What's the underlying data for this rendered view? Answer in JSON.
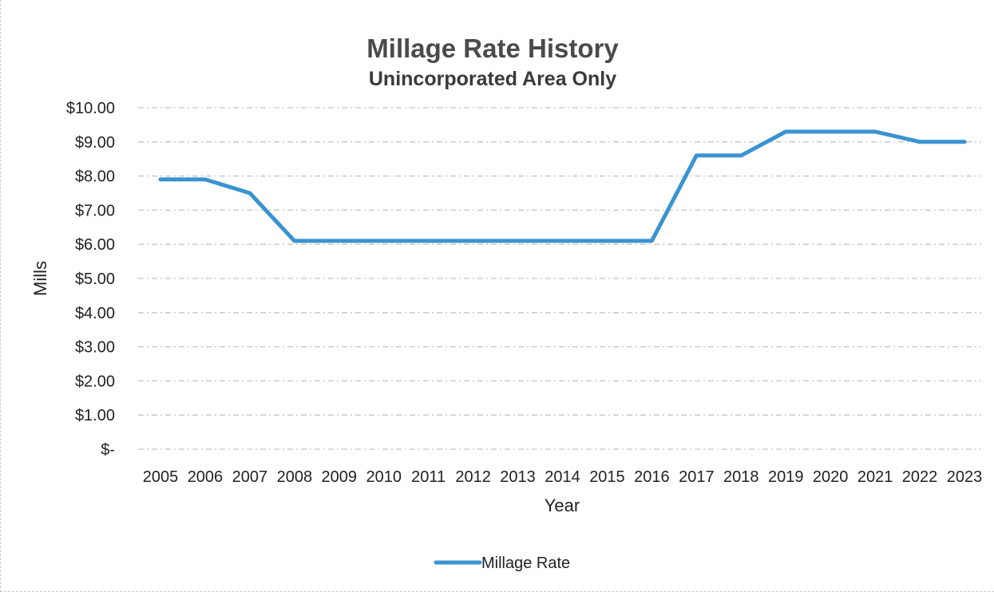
{
  "chart_data": {
    "type": "line",
    "title": "Millage Rate History",
    "subtitle": "Unincorporated Area Only",
    "xlabel": "Year",
    "ylabel": "Mills",
    "categories": [
      "2005",
      "2006",
      "2007",
      "2008",
      "2009",
      "2010",
      "2011",
      "2012",
      "2013",
      "2014",
      "2015",
      "2016",
      "2017",
      "2018",
      "2019",
      "2020",
      "2021",
      "2022",
      "2023"
    ],
    "y_tick_labels": [
      "$-",
      "$1.00",
      "$2.00",
      "$3.00",
      "$4.00",
      "$5.00",
      "$6.00",
      "$7.00",
      "$8.00",
      "$9.00",
      "$10.00"
    ],
    "ylim": [
      0,
      10
    ],
    "grid": true,
    "legend_position": "bottom",
    "series": [
      {
        "name": "Millage Rate",
        "color": "#3a93d1",
        "values": [
          7.9,
          7.9,
          7.5,
          6.1,
          6.1,
          6.1,
          6.1,
          6.1,
          6.1,
          6.1,
          6.1,
          6.1,
          8.6,
          8.6,
          9.3,
          9.3,
          9.3,
          9.0,
          9.0
        ]
      }
    ]
  }
}
